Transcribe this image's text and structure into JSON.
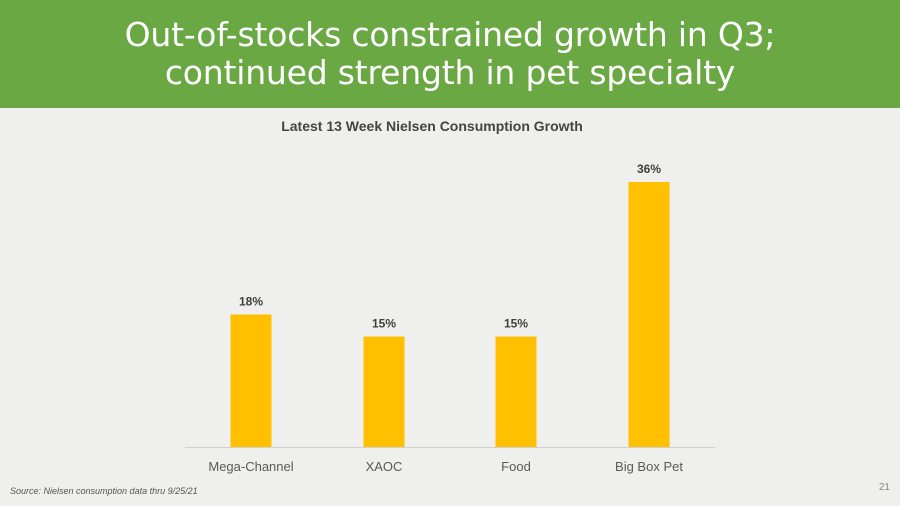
{
  "header": {
    "title": "Out-of-stocks constrained growth in Q3; continued strength in pet specialty"
  },
  "chart_data": {
    "type": "bar",
    "title": "Latest 13 Week Nielsen Consumption Growth",
    "categories": [
      "Mega-Channel",
      "XAOC",
      "Food",
      "Big Box Pet"
    ],
    "values": [
      18,
      15,
      15,
      36
    ],
    "data_labels": [
      "18%",
      "15%",
      "15%",
      "36%"
    ],
    "ylim": [
      0,
      36
    ],
    "xlabel": "",
    "ylabel": "",
    "grid": false,
    "bar_color": "#ffc000"
  },
  "footer": {
    "source": "Source:  Nielsen consumption data thru 9/25/21",
    "page_number": "21"
  },
  "colors": {
    "header_bg": "#6aa844",
    "background": "#efefed",
    "bar": "#ffc000"
  }
}
